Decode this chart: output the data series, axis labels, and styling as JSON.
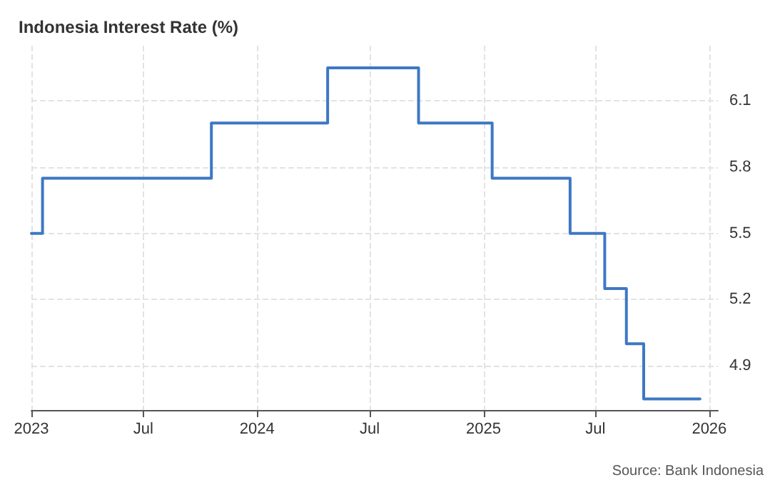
{
  "chart_data": {
    "type": "step",
    "title": "Indonesia Interest Rate (%)",
    "annotations": [
      "Source: Bank Indonesia"
    ],
    "x": [
      "2023-01-01",
      "2023-01-19",
      "2023-10-19",
      "2024-04-24",
      "2024-09-18",
      "2025-01-15",
      "2025-05-21",
      "2025-07-16",
      "2025-08-20",
      "2025-09-17",
      "2025-12-17"
    ],
    "series": [
      {
        "color": "#3d78c3",
        "values": [
          5.5,
          5.75,
          6.0,
          6.25,
          6.0,
          5.75,
          5.5,
          5.25,
          5.0,
          4.75,
          4.75
        ]
      }
    ],
    "xlim": [
      "2023-01-01",
      "2026-01-15"
    ],
    "xticks": [
      {
        "value": "2023-01-01",
        "label": "2023"
      },
      {
        "value": "2023-07-01",
        "label": "Jul"
      },
      {
        "value": "2024-01-01",
        "label": "2024"
      },
      {
        "value": "2024-07-01",
        "label": "Jul"
      },
      {
        "value": "2025-01-01",
        "label": "2025"
      },
      {
        "value": "2025-07-01",
        "label": "Jul"
      },
      {
        "value": "2026-01-01",
        "label": "2026"
      }
    ],
    "ylim": [
      4.7,
      6.35
    ],
    "yticks": [
      4.9,
      5.2,
      5.5,
      5.8,
      6.1
    ],
    "grid": true,
    "marker": "none",
    "line_style": "solid"
  }
}
